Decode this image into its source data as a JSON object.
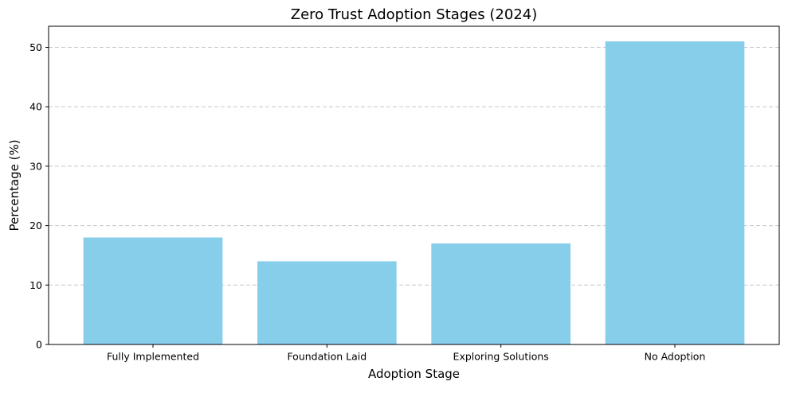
{
  "chart_data": {
    "type": "bar",
    "title": "Zero Trust Adoption Stages (2024)",
    "xlabel": "Adoption Stage",
    "ylabel": "Percentage (%)",
    "categories": [
      "Fully Implemented",
      "Foundation Laid",
      "Exploring Solutions",
      "No Adoption"
    ],
    "values": [
      18,
      14,
      17,
      51
    ],
    "ylim": [
      0,
      53.55
    ],
    "yticks": [
      0,
      10,
      20,
      30,
      40,
      50
    ],
    "grid": "y-dashed",
    "bar_color": "#87CEEB",
    "grid_color": "#c8c8c8"
  }
}
